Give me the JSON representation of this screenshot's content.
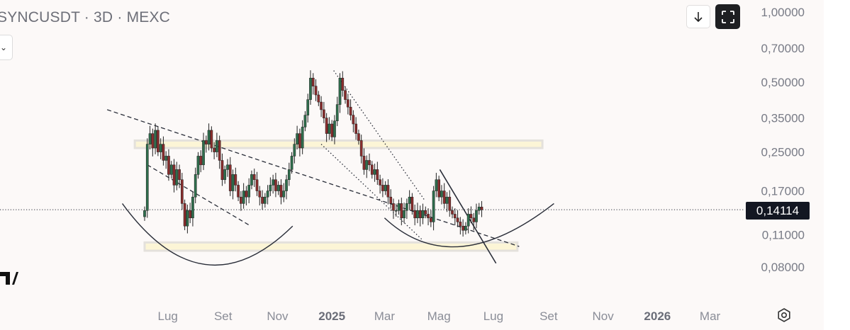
{
  "header": {
    "symbol": "SYNCUSDT",
    "sep1": "·",
    "interval": "3D",
    "sep2": "·",
    "exchange": "MEXC"
  },
  "toolbar": {
    "download_icon": "arrow-down-icon",
    "fullscreen_icon": "fullscreen-icon"
  },
  "colors": {
    "bull": "#2e6e4c",
    "bear": "#8a2d2d",
    "zone_fill": "#fcf5d6",
    "zone_border": "#e4e1dc",
    "axis_text": "#787b86",
    "line": "#2a2e39"
  },
  "price_label": "0,14114",
  "chart_data": {
    "type": "candlestick",
    "scale": "log",
    "y_ticks": [
      {
        "value": 1.0,
        "label": "1,00000"
      },
      {
        "value": 0.7,
        "label": "0,70000"
      },
      {
        "value": 0.5,
        "label": "0,50000"
      },
      {
        "value": 0.35,
        "label": "0,35000"
      },
      {
        "value": 0.25,
        "label": "0,25000"
      },
      {
        "value": 0.17,
        "label": "0,17000"
      },
      {
        "value": 0.11,
        "label": "0,11000"
      },
      {
        "value": 0.08,
        "label": "0,08000"
      }
    ],
    "x_ticks": [
      {
        "date": "2024-07-01",
        "label": "Lug",
        "bold": false
      },
      {
        "date": "2024-09-01",
        "label": "Set",
        "bold": false
      },
      {
        "date": "2024-11-01",
        "label": "Nov",
        "bold": false
      },
      {
        "date": "2025-01-01",
        "label": "2025",
        "bold": true
      },
      {
        "date": "2025-03-01",
        "label": "Mar",
        "bold": false
      },
      {
        "date": "2025-05-01",
        "label": "Mag",
        "bold": false
      },
      {
        "date": "2025-07-01",
        "label": "Lug",
        "bold": false
      },
      {
        "date": "2025-09-01",
        "label": "Set",
        "bold": false
      },
      {
        "date": "2025-11-01",
        "label": "Nov",
        "bold": false
      },
      {
        "date": "2026-01-01",
        "label": "2026",
        "bold": true
      },
      {
        "date": "2026-03-01",
        "label": "Mar",
        "bold": false
      }
    ],
    "current_price": 0.14114,
    "candles": {
      "start_date": "2024-06-05",
      "step_days": 3,
      "close": [
        0.14,
        0.27,
        0.3,
        0.26,
        0.31,
        0.25,
        0.27,
        0.23,
        0.24,
        0.2,
        0.22,
        0.18,
        0.21,
        0.19,
        0.15,
        0.12,
        0.14,
        0.13,
        0.16,
        0.2,
        0.24,
        0.22,
        0.28,
        0.27,
        0.31,
        0.26,
        0.25,
        0.28,
        0.23,
        0.19,
        0.21,
        0.22,
        0.17,
        0.2,
        0.18,
        0.16,
        0.15,
        0.17,
        0.16,
        0.18,
        0.2,
        0.19,
        0.17,
        0.16,
        0.15,
        0.16,
        0.17,
        0.18,
        0.19,
        0.17,
        0.18,
        0.16,
        0.17,
        0.19,
        0.21,
        0.24,
        0.27,
        0.3,
        0.26,
        0.32,
        0.36,
        0.42,
        0.52,
        0.48,
        0.44,
        0.41,
        0.38,
        0.35,
        0.3,
        0.33,
        0.29,
        0.34,
        0.4,
        0.52,
        0.46,
        0.42,
        0.39,
        0.36,
        0.33,
        0.3,
        0.28,
        0.24,
        0.21,
        0.23,
        0.22,
        0.2,
        0.21,
        0.19,
        0.18,
        0.17,
        0.18,
        0.16,
        0.15,
        0.14,
        0.14,
        0.15,
        0.13,
        0.14,
        0.15,
        0.16,
        0.14,
        0.13,
        0.14,
        0.13,
        0.14,
        0.135,
        0.13,
        0.125,
        0.17,
        0.19,
        0.16,
        0.17,
        0.15,
        0.16,
        0.14,
        0.135,
        0.13,
        0.125,
        0.12,
        0.115,
        0.12,
        0.135,
        0.13,
        0.125,
        0.14,
        0.145,
        0.141
      ]
    },
    "annotations": [
      {
        "kind": "zone",
        "label": "upper-resistance-zone",
        "from": "2024-05-25",
        "to": "2025-08-25",
        "low": 0.26,
        "high": 0.28
      },
      {
        "kind": "zone",
        "label": "lower-support-zone",
        "from": "2024-06-05",
        "to": "2025-07-28",
        "low": 0.094,
        "high": 0.102
      },
      {
        "kind": "trendline",
        "style": "dashed",
        "from": [
          "2024-04-24",
          0.38
        ],
        "to": [
          "2025-07-30",
          0.098
        ]
      },
      {
        "kind": "trendline",
        "style": "dashed",
        "from": [
          "2024-06-08",
          0.22
        ],
        "to": [
          "2024-10-02",
          0.12
        ]
      },
      {
        "kind": "trendline",
        "style": "dotted",
        "from": [
          "2025-01-03",
          0.56
        ],
        "to": [
          "2025-04-15",
          0.155
        ]
      },
      {
        "kind": "trendline",
        "style": "dotted",
        "from": [
          "2024-12-20",
          0.27
        ],
        "to": [
          "2025-04-12",
          0.105
        ]
      },
      {
        "kind": "trendline",
        "style": "solid",
        "from": [
          "2025-05-02",
          0.21
        ],
        "to": [
          "2025-07-04",
          0.083
        ]
      },
      {
        "kind": "arc",
        "label": "left-rounded-bottom",
        "from": [
          "2024-05-11",
          0.15
        ],
        "bottom": [
          "2024-08-12",
          0.082
        ],
        "to": [
          "2024-11-18",
          0.12
        ]
      },
      {
        "kind": "arc",
        "label": "right-rounded-bottom",
        "from": [
          "2025-03-01",
          0.13
        ],
        "bottom": [
          "2025-05-26",
          0.098
        ],
        "to": [
          "2025-09-07",
          0.15
        ]
      }
    ]
  }
}
